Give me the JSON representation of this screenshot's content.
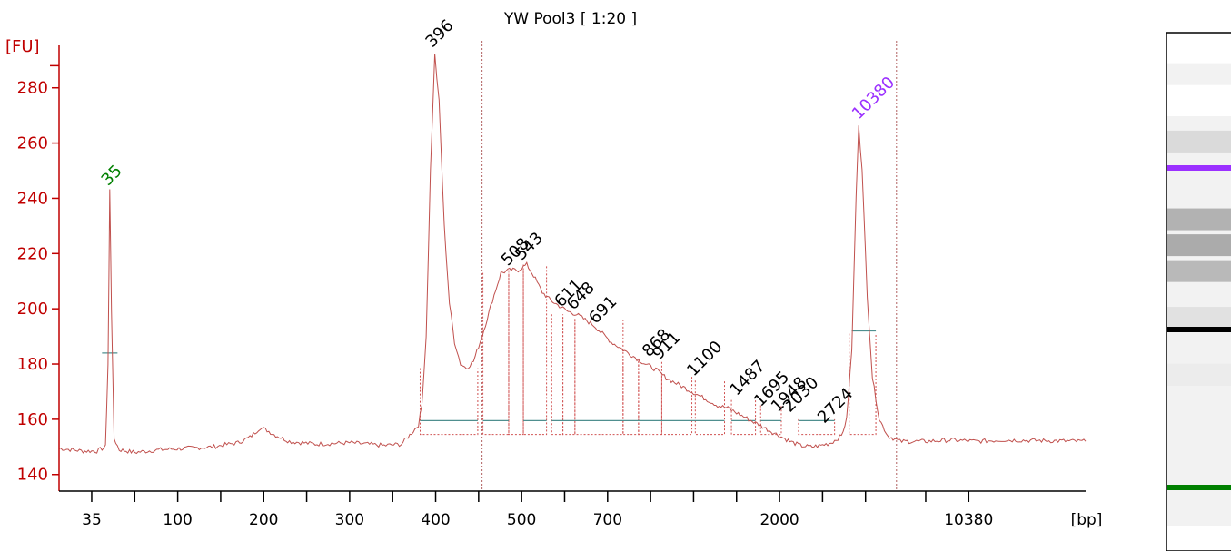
{
  "chart_data": {
    "type": "line",
    "title": "YW Pool3  [ 1:20 ]",
    "ylabel": "[FU]",
    "xlabel": "[bp]",
    "ylim": [
      134,
      297
    ],
    "yticks": [
      140,
      160,
      180,
      200,
      220,
      240,
      260,
      280
    ],
    "xtick_labels": [
      {
        "label": "35",
        "t": 42
      },
      {
        "label": "100",
        "t": 47
      },
      {
        "label": "200",
        "t": 52
      },
      {
        "label": "300",
        "t": 57
      },
      {
        "label": "400",
        "t": 62
      },
      {
        "label": "500",
        "t": 67
      },
      {
        "label": "700",
        "t": 72
      },
      {
        "label": "2000",
        "t": 82
      },
      {
        "label": "10380",
        "t": 93
      }
    ],
    "xtick_marks": [
      42,
      44.5,
      47,
      49.5,
      52,
      54.5,
      57,
      59.5,
      62,
      64.5,
      67,
      69.5,
      72,
      74.5,
      77,
      79.5,
      82,
      84.5,
      87,
      90.5,
      93
    ],
    "xlim": [
      40.1,
      99.8
    ],
    "boundaries": [
      64.7,
      88.8
    ],
    "curve": [
      [
        40.1,
        149.5
      ],
      [
        41.5,
        148.5
      ],
      [
        42.3,
        148.5
      ],
      [
        42.8,
        150
      ],
      [
        42.95,
        180
      ],
      [
        43.05,
        243
      ],
      [
        43.15,
        200
      ],
      [
        43.3,
        153
      ],
      [
        43.6,
        149
      ],
      [
        44.5,
        148
      ],
      [
        46,
        149
      ],
      [
        47.5,
        149.5
      ],
      [
        49,
        150
      ],
      [
        50.5,
        151.5
      ],
      [
        51.2,
        153.5
      ],
      [
        51.8,
        157
      ],
      [
        52.2,
        156
      ],
      [
        52.6,
        154.5
      ],
      [
        53.5,
        152
      ],
      [
        55,
        151
      ],
      [
        57,
        151.5
      ],
      [
        59,
        150.5
      ],
      [
        60,
        151
      ],
      [
        60.3,
        153
      ],
      [
        60.6,
        155
      ],
      [
        61,
        158
      ],
      [
        61.2,
        165
      ],
      [
        61.45,
        190
      ],
      [
        61.7,
        250
      ],
      [
        61.95,
        292
      ],
      [
        62.2,
        275
      ],
      [
        62.5,
        230
      ],
      [
        62.8,
        202
      ],
      [
        63.1,
        188
      ],
      [
        63.45,
        180
      ],
      [
        63.8,
        178.5
      ],
      [
        64.2,
        181
      ],
      [
        64.7,
        190
      ],
      [
        65.3,
        203
      ],
      [
        65.8,
        213
      ],
      [
        66.3,
        214
      ],
      [
        66.8,
        214
      ],
      [
        67.3,
        216
      ],
      [
        67.7,
        212
      ],
      [
        68.2,
        206
      ],
      [
        68.7,
        203
      ],
      [
        69.2,
        201
      ],
      [
        69.7,
        199
      ],
      [
        70.2,
        198
      ],
      [
        70.7,
        196
      ],
      [
        71.2,
        194
      ],
      [
        71.7,
        191
      ],
      [
        72.2,
        188
      ],
      [
        72.7,
        186
      ],
      [
        73.2,
        184
      ],
      [
        73.7,
        182
      ],
      [
        74.2,
        180
      ],
      [
        74.8,
        178
      ],
      [
        75.4,
        175
      ],
      [
        76.0,
        173
      ],
      [
        76.6,
        171
      ],
      [
        77.2,
        169
      ],
      [
        77.8,
        167
      ],
      [
        78.4,
        165
      ],
      [
        79.0,
        164
      ],
      [
        79.6,
        162
      ],
      [
        80.2,
        160
      ],
      [
        80.8,
        158
      ],
      [
        81.4,
        156
      ],
      [
        82.0,
        154
      ],
      [
        82.6,
        152
      ],
      [
        83.2,
        150.5
      ],
      [
        83.8,
        150
      ],
      [
        84.4,
        150.5
      ],
      [
        85.0,
        151.5
      ],
      [
        85.6,
        154
      ],
      [
        85.9,
        160
      ],
      [
        86.2,
        185
      ],
      [
        86.45,
        240
      ],
      [
        86.6,
        267
      ],
      [
        86.8,
        250
      ],
      [
        87.1,
        205
      ],
      [
        87.4,
        175
      ],
      [
        87.8,
        160
      ],
      [
        88.3,
        154
      ],
      [
        89.0,
        152
      ],
      [
        90.5,
        152
      ],
      [
        92,
        152.5
      ],
      [
        93.5,
        152
      ],
      [
        95,
        152.5
      ],
      [
        99.8,
        152
      ]
    ],
    "baselines": [
      {
        "x1": 61.1,
        "x2": 64.45,
        "y": 159.5
      },
      {
        "x1": 64.75,
        "x2": 66.25,
        "y": 159.5
      },
      {
        "x1": 67.1,
        "x2": 68.45,
        "y": 159.5
      },
      {
        "x1": 68.75,
        "x2": 78.8,
        "y": 159.5
      },
      {
        "x1": 79.2,
        "x2": 80.6,
        "y": 159.5
      },
      {
        "x1": 80.9,
        "x2": 82.1,
        "y": 159.5
      },
      {
        "x1": 83.1,
        "x2": 85.2,
        "y": 159.5
      },
      {
        "x1": 42.6,
        "x2": 43.5,
        "y": 184
      },
      {
        "x1": 86.2,
        "x2": 87.6,
        "y": 192
      }
    ],
    "regions": [
      {
        "x1": 61.1,
        "x2": 64.45,
        "top": 178.5
      },
      {
        "x1": 64.75,
        "x2": 66.25,
        "top": 213
      },
      {
        "x1": 66.25,
        "x2": 67.1,
        "top": 214
      },
      {
        "x1": 67.1,
        "x2": 68.45,
        "top": 216
      },
      {
        "x1": 68.75,
        "x2": 69.4,
        "top": 198
      },
      {
        "x1": 69.4,
        "x2": 70.1,
        "top": 197
      },
      {
        "x1": 70.1,
        "x2": 72.9,
        "top": 196
      },
      {
        "x1": 72.9,
        "x2": 73.8,
        "top": 182
      },
      {
        "x1": 73.8,
        "x2": 75.15,
        "top": 181
      },
      {
        "x1": 75.15,
        "x2": 76.9,
        "top": 176
      },
      {
        "x1": 77.1,
        "x2": 78.8,
        "top": 174
      },
      {
        "x1": 79.2,
        "x2": 80.6,
        "top": 167
      },
      {
        "x1": 80.9,
        "x2": 82.1,
        "top": 165
      },
      {
        "x1": 83.1,
        "x2": 85.2,
        "top": 160
      },
      {
        "x1": 86.05,
        "x2": 87.6,
        "top": 191
      }
    ],
    "peaks": [
      {
        "label": "35",
        "x": 42.95,
        "y": 243,
        "color": "#008000"
      },
      {
        "label": "396",
        "x": 61.8,
        "y": 293,
        "color": "#000000"
      },
      {
        "label": "508",
        "x": 66.2,
        "y": 214,
        "color": "#000000"
      },
      {
        "label": "543",
        "x": 67.0,
        "y": 216,
        "color": "#000000"
      },
      {
        "label": "611",
        "x": 69.3,
        "y": 199,
        "color": "#000000"
      },
      {
        "label": "648",
        "x": 70.0,
        "y": 198,
        "color": "#000000"
      },
      {
        "label": "691",
        "x": 71.3,
        "y": 193,
        "color": "#000000"
      },
      {
        "label": "868",
        "x": 74.4,
        "y": 181,
        "color": "#000000"
      },
      {
        "label": "911",
        "x": 75.0,
        "y": 180,
        "color": "#000000"
      },
      {
        "label": "1100",
        "x": 77.0,
        "y": 174,
        "color": "#000000"
      },
      {
        "label": "1487",
        "x": 79.5,
        "y": 167,
        "color": "#000000"
      },
      {
        "label": "1695",
        "x": 80.9,
        "y": 163,
        "color": "#000000"
      },
      {
        "label": "1948",
        "x": 81.9,
        "y": 161,
        "color": "#000000"
      },
      {
        "label": "2030",
        "x": 82.6,
        "y": 161,
        "color": "#000000"
      },
      {
        "label": "2724",
        "x": 84.6,
        "y": 157,
        "color": "#000000"
      },
      {
        "label": "10380",
        "x": 86.6,
        "y": 267,
        "color": "#9b30ff"
      }
    ],
    "colors": {
      "trace": "#c0504d",
      "axis": "#c00000",
      "baseline": "#4f8f8f",
      "marker_low": "#008000",
      "marker_high": "#9b30ff"
    }
  },
  "gel": {
    "bands": [
      {
        "pos": 0.08,
        "strength": 0.1
      },
      {
        "pos": 0.21,
        "strength": 0.25
      },
      {
        "pos": 0.36,
        "strength": 0.55
      },
      {
        "pos": 0.41,
        "strength": 0.6
      },
      {
        "pos": 0.46,
        "strength": 0.5
      },
      {
        "pos": 0.55,
        "strength": 0.2
      },
      {
        "pos": 0.66,
        "strength": 0.12
      },
      {
        "pos": 0.78,
        "strength": 0.08
      }
    ],
    "marker_upper": "#9b30ff",
    "marker_lower": "#008000",
    "main_band": "#000000"
  }
}
